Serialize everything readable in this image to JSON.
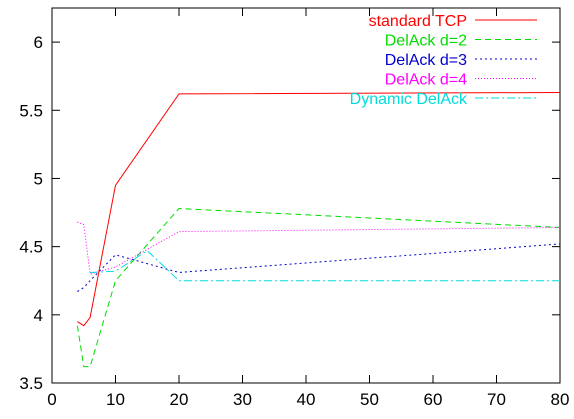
{
  "chart_data": {
    "type": "line",
    "title": "",
    "xlabel": "",
    "ylabel": "",
    "xlim": [
      0,
      80
    ],
    "ylim": [
      3.5,
      6.25
    ],
    "x_ticks": [
      "0",
      "10",
      "20",
      "30",
      "40",
      "50",
      "60",
      "70",
      "80"
    ],
    "y_ticks": [
      "3.5",
      "4",
      "4.5",
      "5",
      "5.5",
      "6"
    ],
    "grid": false,
    "legend_position": "top-right",
    "series": [
      {
        "name": "standard TCP",
        "color": "#ff0000",
        "dash": "solid",
        "x": [
          4,
          5,
          6,
          10,
          20,
          80
        ],
        "y": [
          3.95,
          3.92,
          3.98,
          4.95,
          5.62,
          5.63
        ]
      },
      {
        "name": "DelAck d=2",
        "color": "#00dd00",
        "dash": "dashed",
        "x": [
          4,
          5,
          6,
          10,
          20,
          80
        ],
        "y": [
          3.92,
          3.62,
          3.62,
          4.25,
          4.78,
          4.64
        ]
      },
      {
        "name": "DelAck d=3",
        "color": "#0000cc",
        "dash": "dotted",
        "x": [
          4,
          5,
          6,
          10,
          20,
          80
        ],
        "y": [
          4.17,
          4.2,
          4.25,
          4.44,
          4.31,
          4.52
        ]
      },
      {
        "name": "DelAck d=4",
        "color": "#ff00ff",
        "dash": "fine-dotted",
        "x": [
          4,
          5,
          6,
          10,
          20,
          80
        ],
        "y": [
          4.68,
          4.66,
          4.3,
          4.35,
          4.61,
          4.64
        ]
      },
      {
        "name": "Dynamic DelAck",
        "color": "#00dddd",
        "dash": "dash-dot",
        "x": [
          6,
          10,
          15,
          20,
          80
        ],
        "y": [
          4.31,
          4.32,
          4.47,
          4.25,
          4.25
        ]
      }
    ]
  }
}
